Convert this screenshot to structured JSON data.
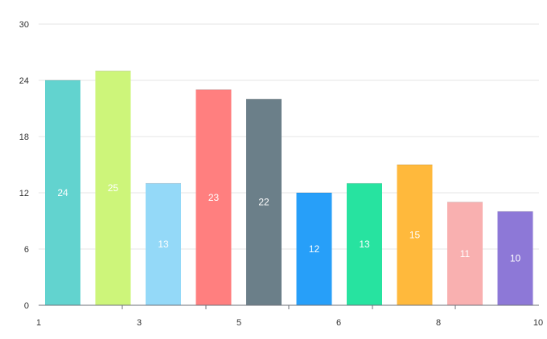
{
  "chart_data": {
    "type": "bar",
    "categories": [
      "1",
      "2",
      "3",
      "4",
      "5",
      "6",
      "7",
      "8",
      "9",
      "10"
    ],
    "values": [
      24,
      25,
      13,
      23,
      22,
      12,
      13,
      15,
      11,
      10
    ],
    "colors": [
      "#62d3cf",
      "#cdf57a",
      "#94d9f8",
      "#ff7f7f",
      "#6b7f89",
      "#279ff9",
      "#27e3a0",
      "#ffb93c",
      "#f9b0b0",
      "#8d78d7"
    ],
    "y_ticks": [
      "0",
      "6",
      "12",
      "18",
      "24",
      "30"
    ],
    "x_tick_labels": [
      "1",
      "3",
      "5",
      "6",
      "8",
      "10"
    ],
    "ylim": [
      0,
      30
    ],
    "title": "",
    "xlabel": "",
    "ylabel": "",
    "grid": true,
    "legend": "none",
    "data_labels": true
  }
}
